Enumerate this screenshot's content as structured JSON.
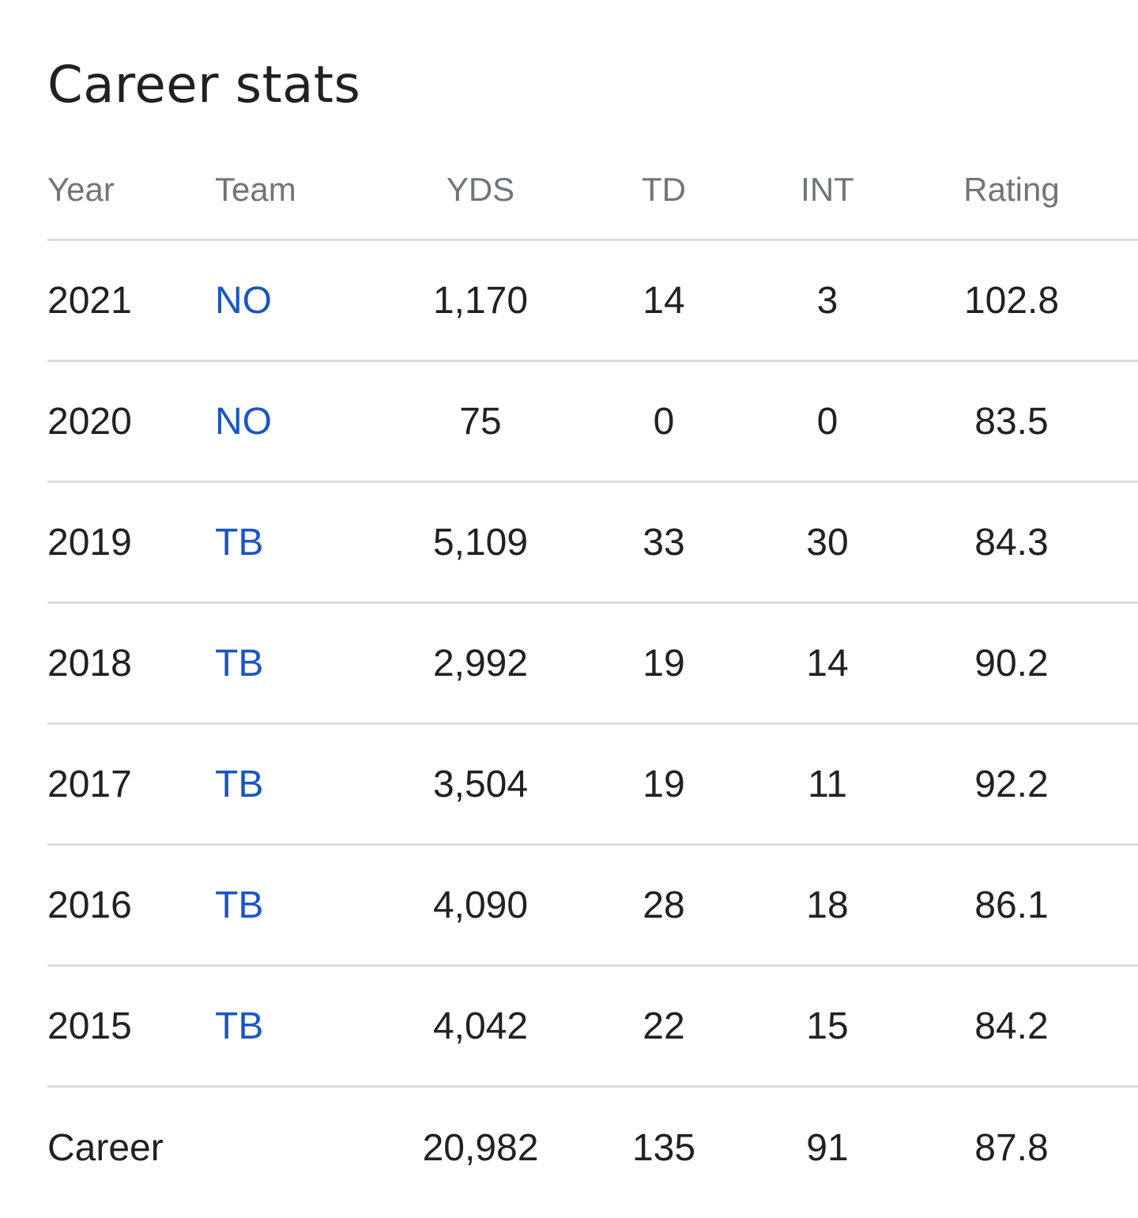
{
  "title": "Career stats",
  "columns": {
    "year": "Year",
    "team": "Team",
    "yds": "YDS",
    "td": "TD",
    "int": "INT",
    "rating": "Rating"
  },
  "rows": [
    {
      "year": "2021",
      "team": "NO",
      "yds": "1,170",
      "td": "14",
      "int": "3",
      "rating": "102.8"
    },
    {
      "year": "2020",
      "team": "NO",
      "yds": "75",
      "td": "0",
      "int": "0",
      "rating": "83.5"
    },
    {
      "year": "2019",
      "team": "TB",
      "yds": "5,109",
      "td": "33",
      "int": "30",
      "rating": "84.3"
    },
    {
      "year": "2018",
      "team": "TB",
      "yds": "2,992",
      "td": "19",
      "int": "14",
      "rating": "90.2"
    },
    {
      "year": "2017",
      "team": "TB",
      "yds": "3,504",
      "td": "19",
      "int": "11",
      "rating": "92.2"
    },
    {
      "year": "2016",
      "team": "TB",
      "yds": "4,090",
      "td": "28",
      "int": "18",
      "rating": "86.1"
    },
    {
      "year": "2015",
      "team": "TB",
      "yds": "4,042",
      "td": "22",
      "int": "15",
      "rating": "84.2"
    }
  ],
  "career": {
    "label": "Career",
    "yds": "20,982",
    "td": "135",
    "int": "91",
    "rating": "87.8"
  },
  "colors": {
    "text": "#202124",
    "header_text": "#70757a",
    "link": "#1a56c4",
    "divider": "#dadce0"
  }
}
